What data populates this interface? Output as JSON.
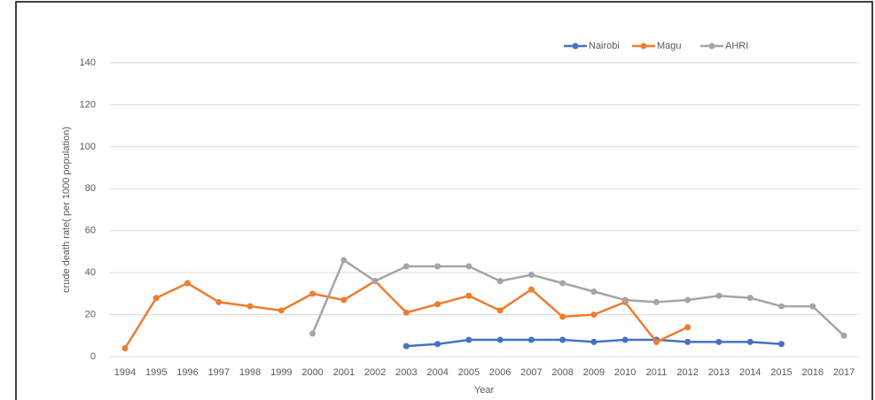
{
  "chart_data": {
    "type": "line",
    "x_label": "Year",
    "y_label": "crude death rate( per 1000 population)",
    "categories": [
      "1994",
      "1995",
      "1996",
      "1997",
      "1998",
      "1999",
      "2000",
      "2001",
      "2002",
      "2003",
      "2004",
      "2005",
      "2006",
      "2007",
      "2008",
      "2009",
      "2010",
      "2011",
      "2012",
      "2013",
      "2014",
      "2015",
      "2016",
      "2017"
    ],
    "series": [
      {
        "name": "Nairobi",
        "color": "#4472c4",
        "values": [
          null,
          null,
          null,
          null,
          null,
          null,
          null,
          null,
          null,
          5,
          6,
          8,
          8,
          8,
          8,
          7,
          8,
          8,
          7,
          7,
          7,
          6,
          null,
          null
        ]
      },
      {
        "name": "Magu",
        "color": "#ed7d31",
        "values": [
          4,
          28,
          35,
          26,
          24,
          22,
          30,
          27,
          36,
          21,
          25,
          29,
          22,
          32,
          19,
          20,
          26,
          7,
          14,
          null,
          null,
          null,
          null,
          null
        ]
      },
      {
        "name": "AHRI",
        "color": "#a5a5a5",
        "values": [
          null,
          null,
          null,
          null,
          null,
          null,
          11,
          46,
          36,
          43,
          43,
          43,
          36,
          39,
          35,
          31,
          27,
          26,
          27,
          29,
          28,
          24,
          24,
          10
        ]
      }
    ],
    "ylim": [
      0,
      140
    ],
    "yticks": [
      0,
      20,
      40,
      60,
      80,
      100,
      120,
      140
    ],
    "grid": true,
    "legend": "top-right"
  }
}
